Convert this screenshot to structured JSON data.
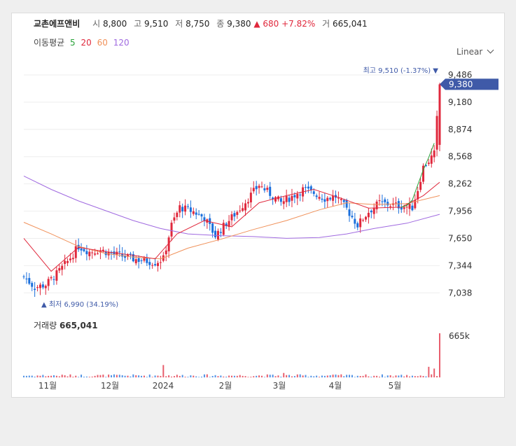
{
  "header": {
    "stock_name": "교촌에프앤비",
    "open_label": "시",
    "open": "8,800",
    "high_label": "고",
    "high": "9,510",
    "low_label": "저",
    "low": "8,750",
    "close_label": "종",
    "close": "9,380",
    "change": "▲ 680 +7.82%",
    "volume_label": "거",
    "volume": "665,041"
  },
  "ma_legend": {
    "title": "이동평균",
    "p5": "5",
    "p20": "20",
    "p60": "60",
    "p120": "120"
  },
  "scale_select": "Linear",
  "volume_panel": {
    "title": "거래량",
    "value": "665,041",
    "axis_max_label": "665k"
  },
  "annotations": {
    "high": "최고 9,510 (-1.37%) ▼",
    "low": "▲ 최저 6,990 (34.19%)",
    "current_price": "9,380"
  },
  "colors": {
    "up": "#e0283c",
    "down": "#1a6fdc",
    "ma5": "#2aa33a",
    "ma20": "#e0283c",
    "ma60": "#f0915a",
    "ma120": "#a06ae0",
    "price_tag": "#3f5aa8"
  },
  "chart_data": {
    "type": "candlestick",
    "y_ticks": [
      9486,
      9180,
      8874,
      8568,
      8262,
      7956,
      7650,
      7344,
      7038
    ],
    "ylim": [
      6930,
      9580
    ],
    "x_labels": [
      "11월",
      "12월",
      "2024",
      "2월",
      "3월",
      "4월",
      "5월"
    ],
    "high": 9510,
    "low": 6990,
    "last_close": 9380,
    "last_volume": 665041,
    "price_path": [
      [
        0,
        7220
      ],
      [
        4,
        7100
      ],
      [
        8,
        7130
      ],
      [
        12,
        7250
      ],
      [
        16,
        7390
      ],
      [
        20,
        7560
      ],
      [
        24,
        7500
      ],
      [
        28,
        7520
      ],
      [
        32,
        7480
      ],
      [
        36,
        7450
      ],
      [
        40,
        7420
      ],
      [
        44,
        7400
      ],
      [
        48,
        7380
      ],
      [
        51,
        7420
      ],
      [
        54,
        7800
      ],
      [
        57,
        8000
      ],
      [
        62,
        7950
      ],
      [
        66,
        7880
      ],
      [
        70,
        7680
      ],
      [
        74,
        7820
      ],
      [
        78,
        7950
      ],
      [
        82,
        8100
      ],
      [
        86,
        8250
      ],
      [
        90,
        8150
      ],
      [
        94,
        8050
      ],
      [
        98,
        8120
      ],
      [
        102,
        8200
      ],
      [
        106,
        8160
      ],
      [
        110,
        8100
      ],
      [
        114,
        8120
      ],
      [
        118,
        7980
      ],
      [
        122,
        7800
      ],
      [
        126,
        7950
      ],
      [
        130,
        8050
      ],
      [
        134,
        8030
      ],
      [
        138,
        8010
      ],
      [
        142,
        8000
      ],
      [
        144,
        8200
      ],
      [
        146,
        8450
      ],
      [
        148,
        8520
      ],
      [
        150,
        8600
      ],
      [
        152,
        9380
      ]
    ],
    "ma5": [
      [
        138,
        8000
      ],
      [
        140,
        8020
      ],
      [
        142,
        8080
      ],
      [
        144,
        8250
      ],
      [
        146,
        8420
      ],
      [
        148,
        8560
      ],
      [
        150,
        8720
      ]
    ],
    "ma20": [
      [
        0,
        7650
      ],
      [
        10,
        7280
      ],
      [
        20,
        7550
      ],
      [
        30,
        7500
      ],
      [
        40,
        7460
      ],
      [
        48,
        7420
      ],
      [
        56,
        7700
      ],
      [
        66,
        7850
      ],
      [
        76,
        7780
      ],
      [
        86,
        8050
      ],
      [
        96,
        8130
      ],
      [
        106,
        8200
      ],
      [
        116,
        8100
      ],
      [
        126,
        7990
      ],
      [
        138,
        8000
      ],
      [
        146,
        8130
      ],
      [
        152,
        8280
      ]
    ],
    "ma60": [
      [
        0,
        7830
      ],
      [
        10,
        7700
      ],
      [
        20,
        7560
      ],
      [
        30,
        7480
      ],
      [
        40,
        7440
      ],
      [
        50,
        7420
      ],
      [
        60,
        7540
      ],
      [
        72,
        7640
      ],
      [
        84,
        7750
      ],
      [
        96,
        7850
      ],
      [
        108,
        7970
      ],
      [
        118,
        8050
      ],
      [
        128,
        8030
      ],
      [
        140,
        8040
      ],
      [
        152,
        8130
      ]
    ],
    "ma120": [
      [
        0,
        8350
      ],
      [
        10,
        8200
      ],
      [
        20,
        8070
      ],
      [
        30,
        7960
      ],
      [
        40,
        7850
      ],
      [
        50,
        7760
      ],
      [
        60,
        7700
      ],
      [
        72,
        7680
      ],
      [
        84,
        7670
      ],
      [
        96,
        7650
      ],
      [
        108,
        7660
      ],
      [
        118,
        7700
      ],
      [
        128,
        7760
      ],
      [
        140,
        7820
      ],
      [
        152,
        7920
      ]
    ],
    "volume_spikes": [
      [
        51,
        0.28
      ],
      [
        95,
        0.1
      ],
      [
        148,
        0.24
      ],
      [
        150,
        0.2
      ],
      [
        152,
        1.0
      ]
    ]
  }
}
